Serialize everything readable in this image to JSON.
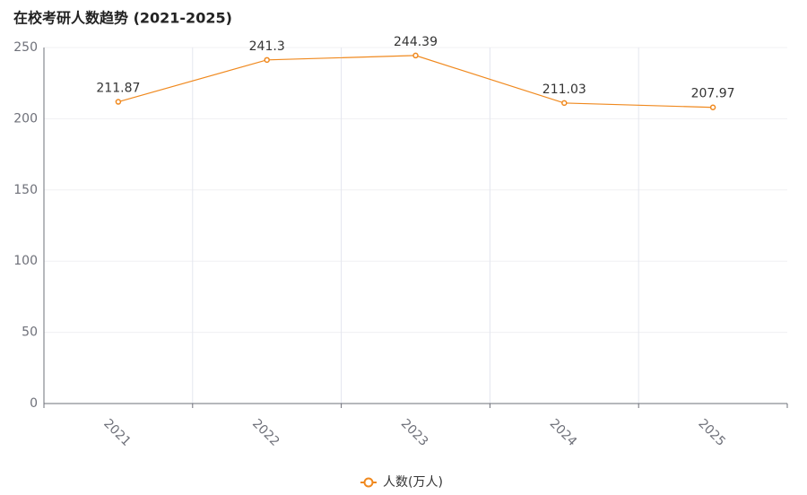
{
  "chart_data": {
    "type": "line",
    "title": "在校考研人数趋势 (2021-2025)",
    "categories": [
      "2021",
      "2022",
      "2023",
      "2024",
      "2025"
    ],
    "series": [
      {
        "name": "人数(万人)",
        "color": "#f0891e",
        "values": [
          211.87,
          241.3,
          244.39,
          211.03,
          207.97
        ]
      }
    ],
    "ylim": [
      0,
      250
    ],
    "yticks": [
      0,
      50,
      100,
      150,
      200,
      250
    ],
    "grid": true,
    "legend": "bottom"
  }
}
